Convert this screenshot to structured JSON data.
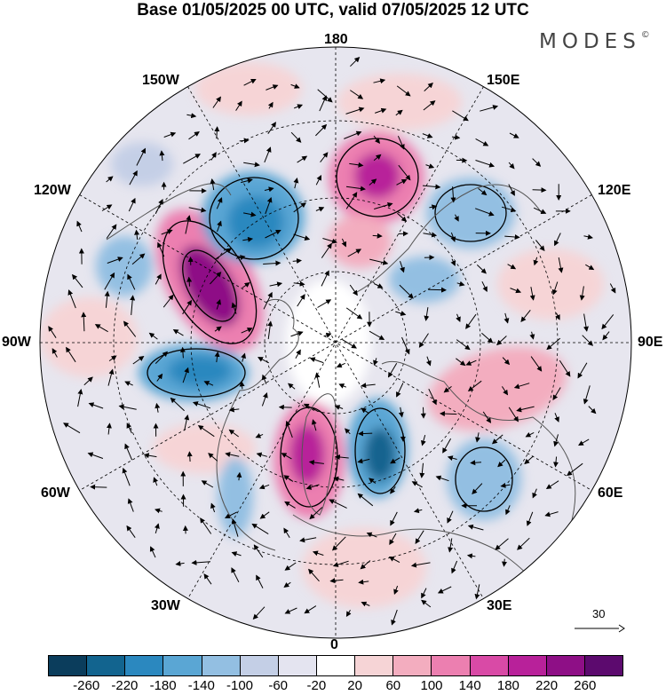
{
  "title": "Base 01/05/2025 00 UTC, valid 07/05/2025 12 UTC",
  "brand": "MODES",
  "brand_mark": "©",
  "longitude_labels": {
    "top": "180",
    "bottom": "0",
    "left": "90W",
    "right": "90E",
    "w150": "150W",
    "e150": "150E",
    "w120": "120W",
    "e120": "120E",
    "w60": "60W",
    "e60": "60E",
    "w30": "30W",
    "e30": "30E"
  },
  "vector_scale": {
    "label": "30"
  },
  "colorbar": {
    "colors": [
      "#0b3d5c",
      "#12648f",
      "#2b88bf",
      "#5aa6d4",
      "#93bfe2",
      "#c4cfe6",
      "#e4e4f0",
      "#ffffff",
      "#f6d4d6",
      "#f3adbf",
      "#ec7fb0",
      "#d94aa6",
      "#b8219a",
      "#8e0f86",
      "#5c0a6e"
    ],
    "ticks": [
      "-260",
      "-220",
      "-180",
      "-140",
      "-100",
      "-60",
      "-20",
      "20",
      "60",
      "100",
      "140",
      "180",
      "220",
      "260"
    ]
  },
  "map_colors": {
    "land_edge": "#555555",
    "grid": "#000000"
  }
}
